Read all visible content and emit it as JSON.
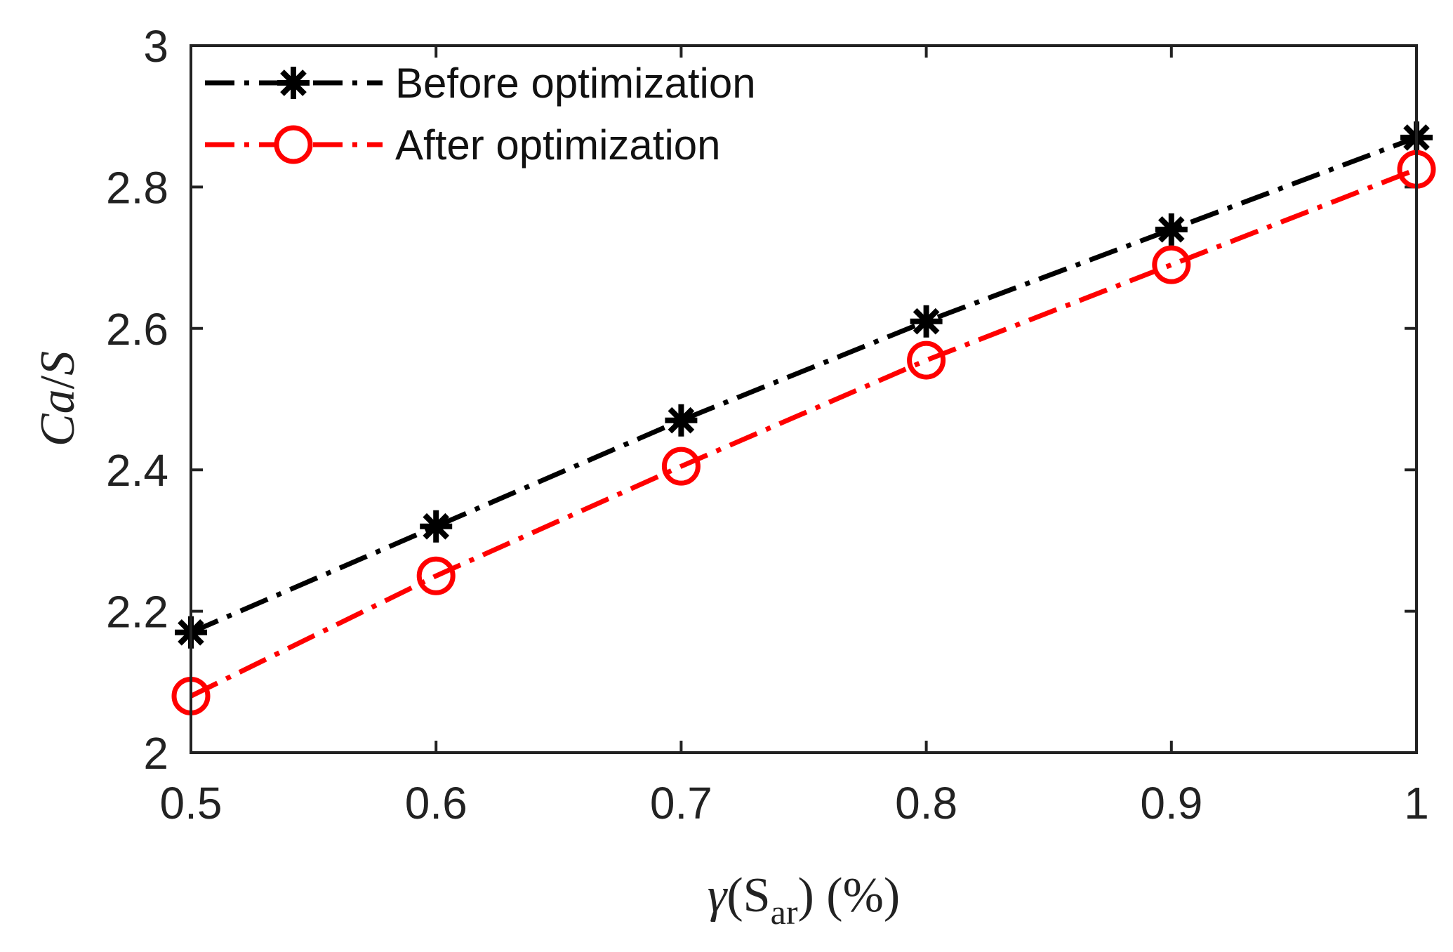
{
  "chart_data": {
    "type": "line",
    "title": "",
    "xlabel": {
      "symbol": "γ",
      "open": "(S",
      "subscript": "ar",
      "close": ") (%)"
    },
    "ylabel": {
      "italic": "Ca",
      "slash": "/",
      "italic2": "S"
    },
    "x": [
      0.5,
      0.6,
      0.7,
      0.8,
      0.9,
      1.0
    ],
    "xlim": [
      0.5,
      1.0
    ],
    "ylim": [
      2.0,
      3.0
    ],
    "xticks": [
      0.5,
      0.6,
      0.7,
      0.8,
      0.9,
      1.0
    ],
    "xtick_labels": [
      "0.5",
      "0.6",
      "0.7",
      "0.8",
      "0.9",
      "1"
    ],
    "yticks": [
      2.0,
      2.2,
      2.4,
      2.6,
      2.8,
      3.0
    ],
    "ytick_labels": [
      "2",
      "2.2",
      "2.4",
      "2.6",
      "2.8",
      "3"
    ],
    "grid": false,
    "legend_position": "top-left",
    "series": [
      {
        "name": "Before optimization",
        "values": [
          2.17,
          2.32,
          2.47,
          2.61,
          2.74,
          2.87
        ],
        "color": "#000000",
        "marker": "asterisk",
        "line_style": "dash-dot"
      },
      {
        "name": "After optimization",
        "values": [
          2.08,
          2.25,
          2.405,
          2.555,
          2.69,
          2.825
        ],
        "color": "#ff0000",
        "marker": "circle",
        "line_style": "dash-dot"
      }
    ]
  }
}
